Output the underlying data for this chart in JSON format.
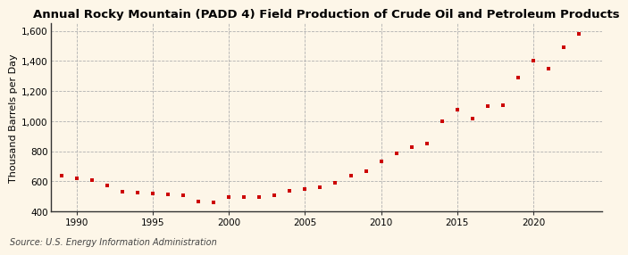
{
  "title": "Annual Rocky Mountain (PADD 4) Field Production of Crude Oil and Petroleum Products",
  "ylabel": "Thousand Barrels per Day",
  "source": "Source: U.S. Energy Information Administration",
  "background_color": "#fdf6e8",
  "marker_color": "#cc0000",
  "years": [
    1989,
    1990,
    1991,
    1992,
    1993,
    1994,
    1995,
    1996,
    1997,
    1998,
    1999,
    2000,
    2001,
    2002,
    2003,
    2004,
    2005,
    2006,
    2007,
    2008,
    2009,
    2010,
    2011,
    2012,
    2013,
    2014,
    2015,
    2016,
    2017,
    2018,
    2019,
    2020,
    2021,
    2022,
    2023
  ],
  "values": [
    635,
    617,
    608,
    573,
    533,
    523,
    518,
    515,
    508,
    468,
    462,
    497,
    497,
    492,
    508,
    535,
    548,
    558,
    592,
    638,
    668,
    730,
    783,
    828,
    852,
    997,
    1078,
    1018,
    1098,
    1108,
    1287,
    1402,
    1347,
    1490,
    1578
  ],
  "ylim": [
    400,
    1650
  ],
  "yticks": [
    400,
    600,
    800,
    1000,
    1200,
    1400,
    1600
  ],
  "ytick_labels": [
    "400",
    "600",
    "800",
    "1,000",
    "1,200",
    "1,400",
    "1,600"
  ],
  "xlim": [
    1988.3,
    2024.5
  ],
  "xticks": [
    1990,
    1995,
    2000,
    2005,
    2010,
    2015,
    2020
  ],
  "grid_color": "#b0b0b0",
  "title_fontsize": 9.5,
  "label_fontsize": 8,
  "tick_fontsize": 7.5,
  "source_fontsize": 7
}
